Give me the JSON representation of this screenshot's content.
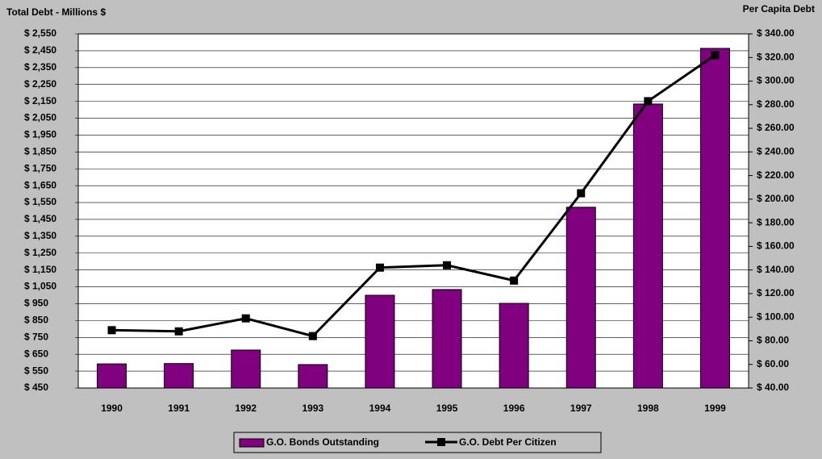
{
  "chart_data": {
    "type": "bar",
    "title": "Total Debt  -  Millions $",
    "y2_title": "Per Capita Debt",
    "categories": [
      "1990",
      "1991",
      "1992",
      "1993",
      "1994",
      "1995",
      "1996",
      "1997",
      "1998",
      "1999"
    ],
    "series": [
      {
        "name": "G.O. Bonds Outstanding",
        "color": "#800080",
        "values": [
          593,
          595,
          675,
          589,
          1000,
          1034,
          952,
          1522,
          2134,
          2464
        ]
      },
      {
        "name": "G.O. Debt Per Citizen",
        "color": "#000000",
        "type": "line",
        "axis": "y2",
        "values": [
          89,
          88,
          99,
          84,
          142,
          144,
          131,
          205,
          283,
          322
        ]
      }
    ],
    "ylim": [
      450,
      2550
    ],
    "yticks": [
      {
        "value": 450,
        "label": "$ 450"
      },
      {
        "value": 550,
        "label": "$ 550"
      },
      {
        "value": 650,
        "label": "$ 650"
      },
      {
        "value": 750,
        "label": "$ 750"
      },
      {
        "value": 850,
        "label": "$ 850"
      },
      {
        "value": 950,
        "label": "$ 950"
      },
      {
        "value": 1050,
        "label": "$ 1,050"
      },
      {
        "value": 1150,
        "label": "$ 1,150"
      },
      {
        "value": 1250,
        "label": "$ 1,250"
      },
      {
        "value": 1350,
        "label": "$ 1,350"
      },
      {
        "value": 1450,
        "label": "$ 1,450"
      },
      {
        "value": 1550,
        "label": "$ 1,550"
      },
      {
        "value": 1650,
        "label": "$ 1,650"
      },
      {
        "value": 1750,
        "label": "$ 1,750"
      },
      {
        "value": 1850,
        "label": "$ 1,850"
      },
      {
        "value": 1950,
        "label": "$ 1,950"
      },
      {
        "value": 2050,
        "label": "$ 2,050"
      },
      {
        "value": 2150,
        "label": "$ 2,150"
      },
      {
        "value": 2250,
        "label": "$ 2,250"
      },
      {
        "value": 2350,
        "label": "$ 2,350"
      },
      {
        "value": 2450,
        "label": "$ 2,450"
      },
      {
        "value": 2550,
        "label": "$ 2,550"
      }
    ],
    "y2lim": [
      40,
      340
    ],
    "y2ticks": [
      {
        "value": 40,
        "label": "$ 40.00"
      },
      {
        "value": 60,
        "label": "$ 60.00"
      },
      {
        "value": 80,
        "label": "$ 80.00"
      },
      {
        "value": 100,
        "label": "$ 100.00"
      },
      {
        "value": 120,
        "label": "$ 120.00"
      },
      {
        "value": 140,
        "label": "$ 140.00"
      },
      {
        "value": 160,
        "label": "$ 160.00"
      },
      {
        "value": 180,
        "label": "$ 180.00"
      },
      {
        "value": 200,
        "label": "$ 200.00"
      },
      {
        "value": 220,
        "label": "$ 220.00"
      },
      {
        "value": 240,
        "label": "$ 240.00"
      },
      {
        "value": 260,
        "label": "$ 260.00"
      },
      {
        "value": 280,
        "label": "$ 280.00"
      },
      {
        "value": 300,
        "label": "$ 300.00"
      },
      {
        "value": 320,
        "label": "$ 320.00"
      },
      {
        "value": 340,
        "label": "$ 340.00"
      }
    ],
    "grid": true,
    "legend": "bottom"
  }
}
